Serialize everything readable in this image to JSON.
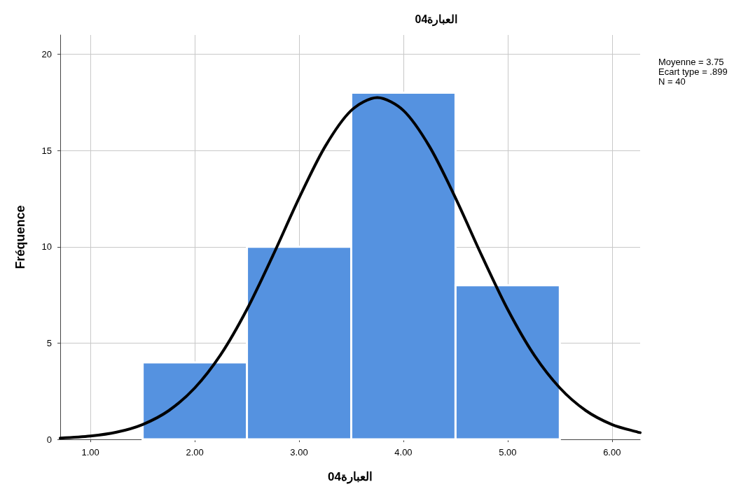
{
  "chart_data": {
    "type": "histogram",
    "title": "العبارة04",
    "xlabel": "العبارة04",
    "ylabel": "Fréquence",
    "bins": [
      1.5,
      2.5,
      3.5,
      4.5,
      5.5
    ],
    "values": [
      4,
      10,
      18,
      8
    ],
    "color": "#5592e0",
    "series": [
      {
        "type": "line",
        "color": "#000000",
        "marker": "none",
        "line_style": "solid",
        "x": [
          0.71,
          1.0,
          1.25,
          1.5,
          1.75,
          2.0,
          2.25,
          2.5,
          2.75,
          3.0,
          3.25,
          3.5,
          3.75,
          4.0,
          4.25,
          4.5,
          4.75,
          5.0,
          5.25,
          5.5,
          5.75,
          6.0,
          6.25,
          6.27
        ],
        "values": [
          0.06,
          0.17,
          0.37,
          0.77,
          1.49,
          2.67,
          4.41,
          6.75,
          9.56,
          12.53,
          15.21,
          17.08,
          17.75,
          17.08,
          15.21,
          12.53,
          9.56,
          6.75,
          4.41,
          2.67,
          1.49,
          0.77,
          0.37,
          0.35
        ]
      }
    ],
    "xlim": [
      0.71,
      6.27
    ],
    "xticks": [
      {
        "value": 1,
        "label": "1.00"
      },
      {
        "value": 2,
        "label": "2.00"
      },
      {
        "value": 3,
        "label": "3.00"
      },
      {
        "value": 4,
        "label": "4.00"
      },
      {
        "value": 5,
        "label": "5.00"
      },
      {
        "value": 6,
        "label": "6.00"
      }
    ],
    "ylim": [
      0,
      21
    ],
    "yticks": [
      0,
      5,
      10,
      15,
      20
    ],
    "grid": true,
    "annotations": [
      "Moyenne = 3.75",
      "Ecart type = .899",
      "N = 40"
    ]
  }
}
